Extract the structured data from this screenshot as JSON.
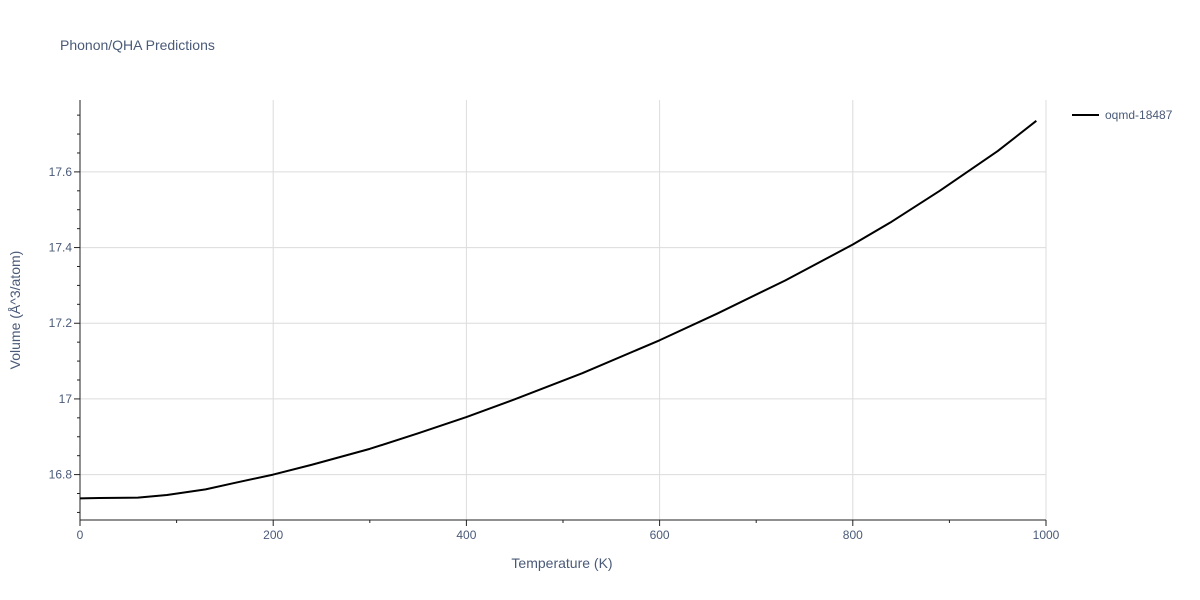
{
  "chart_data": {
    "type": "line",
    "title": "Phonon/QHA Predictions",
    "xlabel": "Temperature (K)",
    "ylabel": "Volume (Å^3/atom)",
    "xlim": [
      0,
      1000
    ],
    "ylim": [
      16.68,
      17.79
    ],
    "x_ticks": [
      0,
      200,
      400,
      600,
      800,
      1000
    ],
    "x_tick_labels": [
      "0",
      "200",
      "400",
      "600",
      "800",
      "1000"
    ],
    "y_ticks": [
      16.8,
      17.0,
      17.2,
      17.4,
      17.6
    ],
    "y_tick_labels": [
      "16.8",
      "17",
      "17.2",
      "17.4",
      "17.6"
    ],
    "grid": true,
    "legend_position": "top-right",
    "series": [
      {
        "name": "oqmd-18487",
        "color": "#000000",
        "x": [
          0,
          20,
          60,
          90,
          130,
          160,
          200,
          240,
          300,
          350,
          400,
          450,
          520,
          600,
          660,
          730,
          800,
          840,
          890,
          950,
          990
        ],
        "y": [
          16.737,
          16.738,
          16.739,
          16.746,
          16.761,
          16.778,
          16.8,
          16.826,
          16.868,
          16.909,
          16.952,
          16.999,
          17.068,
          17.155,
          17.226,
          17.313,
          17.408,
          17.468,
          17.55,
          17.655,
          17.735
        ]
      }
    ]
  }
}
